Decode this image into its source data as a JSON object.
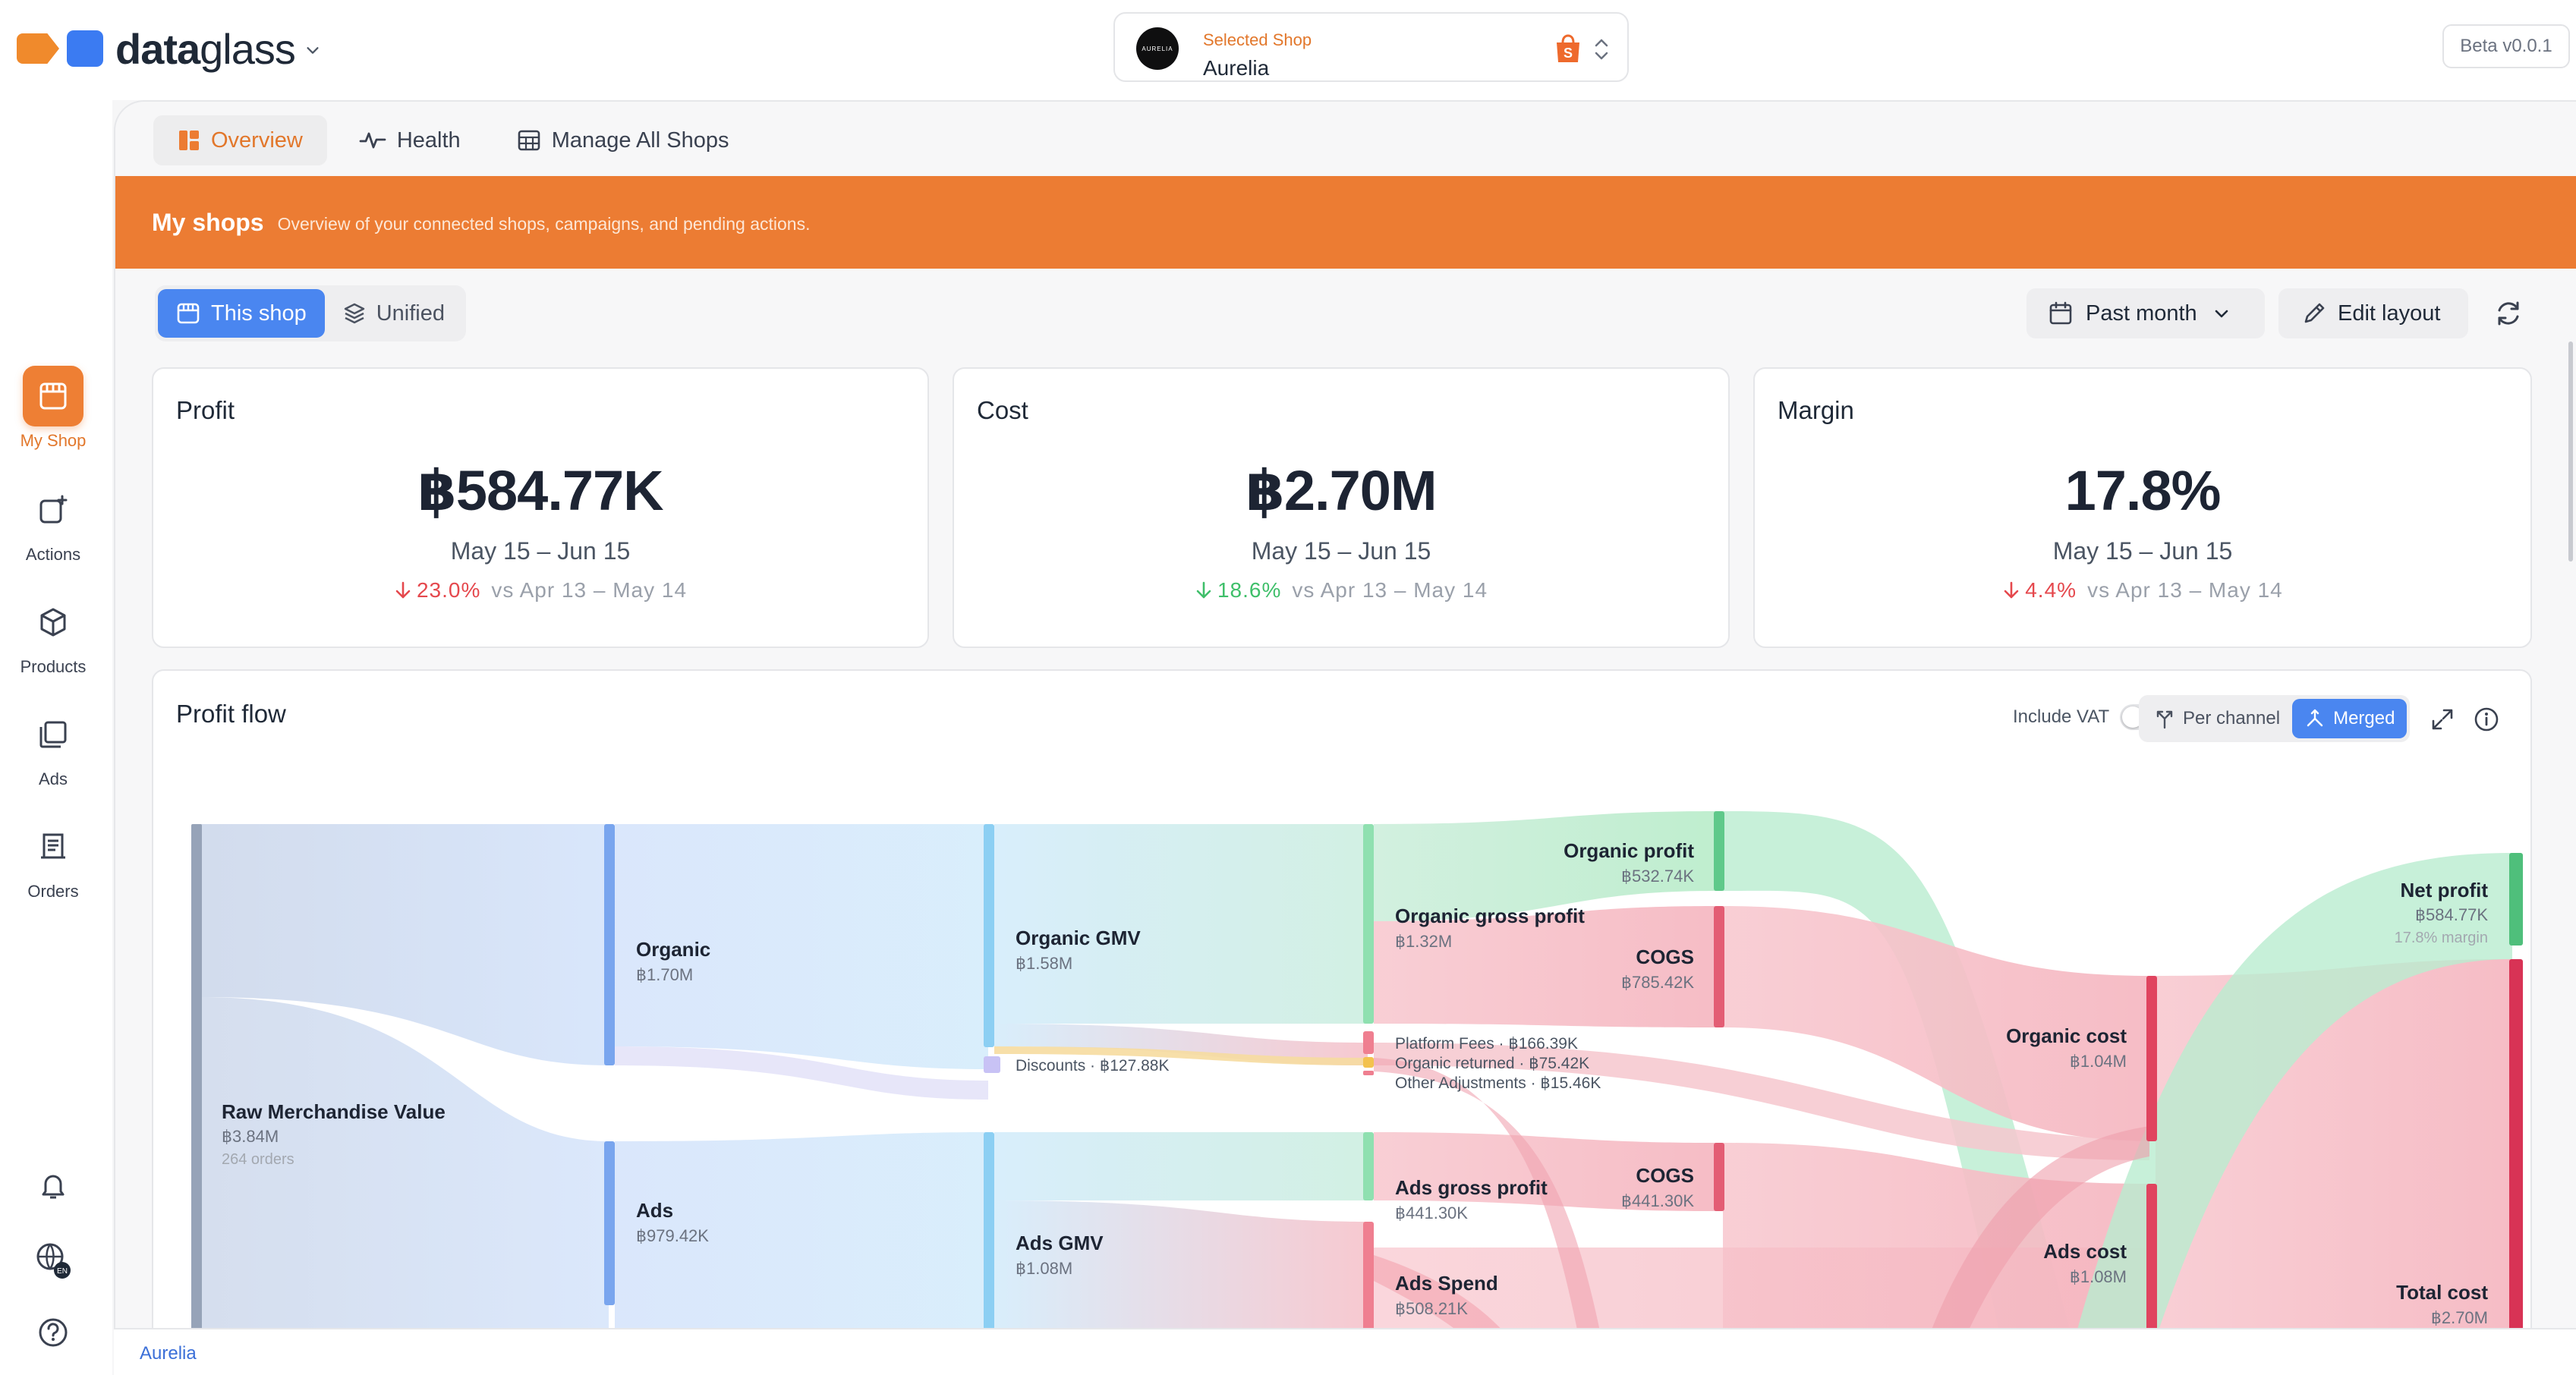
{
  "app": {
    "brand_bold": "data",
    "brand_light": "glass",
    "beta": "Beta v0.0.1"
  },
  "shop_selector": {
    "caption": "Selected Shop",
    "name": "Aurelia",
    "avatar_text": "AURELIA"
  },
  "sidebar": {
    "items": [
      {
        "label": "My Shop",
        "icon": "storefront-icon"
      },
      {
        "label": "Actions",
        "icon": "actions-icon"
      },
      {
        "label": "Products",
        "icon": "box-icon"
      },
      {
        "label": "Ads",
        "icon": "ads-icon"
      },
      {
        "label": "Orders",
        "icon": "receipt-icon"
      }
    ],
    "bottom_icons": [
      "bell-icon",
      "globe-icon",
      "help-icon"
    ],
    "language_badge": "EN"
  },
  "tabs": [
    {
      "label": "Overview",
      "icon": "dashboard-icon"
    },
    {
      "label": "Health",
      "icon": "pulse-icon"
    },
    {
      "label": "Manage All Shops",
      "icon": "grid-icon"
    }
  ],
  "banner": {
    "title": "My shops",
    "subtitle": "Overview of your connected shops, campaigns, and pending actions."
  },
  "scope": {
    "this_shop": "This shop",
    "unified": "Unified"
  },
  "toolbar": {
    "date_range": "Past month",
    "edit_layout": "Edit layout"
  },
  "kpis": [
    {
      "title": "Profit",
      "value": "฿584.77K",
      "range": "May 15 – Jun 15",
      "delta": "23.0%",
      "direction": "down",
      "color": "#e5484d",
      "compare": "vs  Apr 13 – May 14"
    },
    {
      "title": "Cost",
      "value": "฿2.70M",
      "range": "May 15 – Jun 15",
      "delta": "18.6%",
      "direction": "down",
      "color": "#3fbf6a",
      "compare": "vs  Apr 13 – May 14"
    },
    {
      "title": "Margin",
      "value": "17.8%",
      "range": "May 15 – Jun 15",
      "delta": "4.4%",
      "direction": "down",
      "color": "#e5484d",
      "compare": "vs  Apr 13 – May 14"
    }
  ],
  "profit_flow": {
    "title": "Profit flow",
    "include_vat": "Include VAT",
    "per_channel": "Per channel",
    "merged": "Merged",
    "nodes": {
      "rmv": {
        "label": "Raw Merchandise Value",
        "value": "฿3.84M",
        "sub": "264 orders"
      },
      "organic": {
        "label": "Organic",
        "value": "฿1.70M"
      },
      "ads": {
        "label": "Ads",
        "value": "฿979.42K"
      },
      "organic_gmv": {
        "label": "Organic GMV",
        "value": "฿1.58M"
      },
      "discounts": {
        "label": "Discounts · ฿127.88K"
      },
      "ads_gmv": {
        "label": "Ads GMV",
        "value": "฿1.08M"
      },
      "organic_gross": {
        "label": "Organic gross profit",
        "value": "฿1.32M"
      },
      "platform_fees": {
        "label": "Platform Fees · ฿166.39K"
      },
      "organic_returned": {
        "label": "Organic returned · ฿75.42K"
      },
      "other_adj": {
        "label": "Other Adjustments · ฿15.46K"
      },
      "ads_gross": {
        "label": "Ads gross profit",
        "value": "฿441.30K"
      },
      "ads_spend": {
        "label": "Ads Spend",
        "value": "฿508.21K"
      },
      "organic_profit": {
        "label": "Organic profit",
        "value": "฿532.74K"
      },
      "cogs_organic": {
        "label": "COGS",
        "value": "฿785.42K"
      },
      "cogs_ads": {
        "label": "COGS",
        "value": "฿441.30K"
      },
      "organic_cost": {
        "label": "Organic cost",
        "value": "฿1.04M"
      },
      "ads_cost": {
        "label": "Ads cost",
        "value": "฿1.08M"
      },
      "net_profit": {
        "label": "Net profit",
        "value": "฿584.77K",
        "sub": "17.8% margin"
      },
      "total_cost": {
        "label": "Total cost",
        "value": "฿2.70M"
      }
    }
  },
  "statusbar": {
    "shop": "Aurelia"
  },
  "colors": {
    "accent_orange": "#ec7c33",
    "accent_blue": "#4a86f0",
    "profit_green": "#3fbf6a",
    "cost_red": "#e5484d"
  }
}
